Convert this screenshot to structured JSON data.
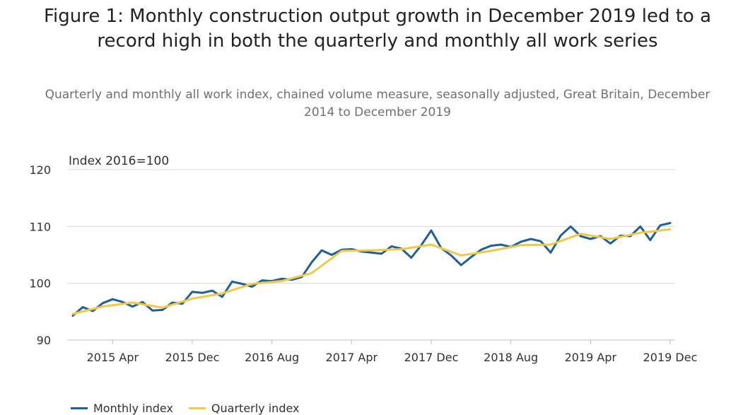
{
  "title": "Figure 1: Monthly construction output growth in December 2019 led to a record high in both the quarterly and monthly all work series",
  "subtitle": "Quarterly and monthly all work index, chained volume measure, seasonally adjusted, Great Britain, December 2014 to December 2019",
  "chart_data": {
    "type": "line",
    "title": "Figure 1: Monthly construction output growth in December 2019 led to a record high in both the quarterly and monthly all work series",
    "subtitle": "Quarterly and monthly all work index, chained volume measure, seasonally adjusted, Great Britain, December 2014 to December 2019",
    "ylabel": "Index 2016=100",
    "ylim": [
      90,
      120
    ],
    "yticks": [
      90,
      100,
      110,
      120
    ],
    "grid": true,
    "legend_placement": "bottom-left",
    "x_start": "2014 Dec",
    "x_end": "2019 Dec",
    "xtick_labels": [
      {
        "label": "2015 Apr",
        "date": "2015-04"
      },
      {
        "label": "2015 Dec",
        "date": "2015-12"
      },
      {
        "label": "2016 Aug",
        "date": "2016-08"
      },
      {
        "label": "2017 Apr",
        "date": "2017-04"
      },
      {
        "label": "2017 Dec",
        "date": "2017-12"
      },
      {
        "label": "2018 Aug",
        "date": "2018-08"
      },
      {
        "label": "2019 Apr",
        "date": "2019-04"
      },
      {
        "label": "2019 Dec",
        "date": "2019-12"
      }
    ],
    "series": [
      {
        "name": "Monthly index",
        "color": "#206095",
        "x": [
          "2014-12",
          "2015-01",
          "2015-02",
          "2015-03",
          "2015-04",
          "2015-05",
          "2015-06",
          "2015-07",
          "2015-08",
          "2015-09",
          "2015-10",
          "2015-11",
          "2015-12",
          "2016-01",
          "2016-02",
          "2016-03",
          "2016-04",
          "2016-05",
          "2016-06",
          "2016-07",
          "2016-08",
          "2016-09",
          "2016-10",
          "2016-11",
          "2016-12",
          "2017-01",
          "2017-02",
          "2017-03",
          "2017-04",
          "2017-05",
          "2017-06",
          "2017-07",
          "2017-08",
          "2017-09",
          "2017-10",
          "2017-11",
          "2017-12",
          "2018-01",
          "2018-02",
          "2018-03",
          "2018-04",
          "2018-05",
          "2018-06",
          "2018-07",
          "2018-08",
          "2018-09",
          "2018-10",
          "2018-11",
          "2018-12",
          "2019-01",
          "2019-02",
          "2019-03",
          "2019-04",
          "2019-05",
          "2019-06",
          "2019-07",
          "2019-08",
          "2019-09",
          "2019-10",
          "2019-11",
          "2019-12"
        ],
        "values": [
          94.3,
          95.8,
          95.1,
          96.5,
          97.2,
          96.7,
          95.9,
          96.7,
          95.2,
          95.3,
          96.6,
          96.4,
          98.5,
          98.3,
          98.7,
          97.6,
          100.3,
          99.9,
          99.4,
          100.5,
          100.4,
          100.8,
          100.6,
          101.1,
          103.7,
          105.8,
          105.0,
          105.9,
          106.0,
          105.6,
          105.4,
          105.2,
          106.5,
          106.1,
          104.5,
          106.7,
          109.3,
          106.2,
          104.9,
          103.2,
          104.6,
          105.9,
          106.6,
          106.8,
          106.4,
          107.3,
          107.8,
          107.4,
          105.4,
          108.4,
          110.0,
          108.3,
          107.8,
          108.3,
          107.0,
          108.4,
          108.3,
          110.0,
          107.6,
          110.2,
          110.6
        ]
      },
      {
        "name": "Quarterly index",
        "color": "#f0c94b",
        "x": [
          "2014-12",
          "2015-03",
          "2015-06",
          "2015-09",
          "2015-12",
          "2016-03",
          "2016-06",
          "2016-09",
          "2016-12",
          "2017-03",
          "2017-06",
          "2017-09",
          "2017-12",
          "2018-03",
          "2018-06",
          "2018-09",
          "2018-12",
          "2019-03",
          "2019-06",
          "2019-09",
          "2019-12"
        ],
        "values": [
          94.6,
          95.9,
          96.6,
          95.7,
          97.3,
          98.2,
          99.9,
          100.4,
          101.8,
          105.7,
          105.8,
          106.0,
          106.8,
          104.9,
          105.7,
          106.7,
          106.8,
          108.7,
          107.8,
          108.9,
          109.5
        ]
      }
    ]
  }
}
